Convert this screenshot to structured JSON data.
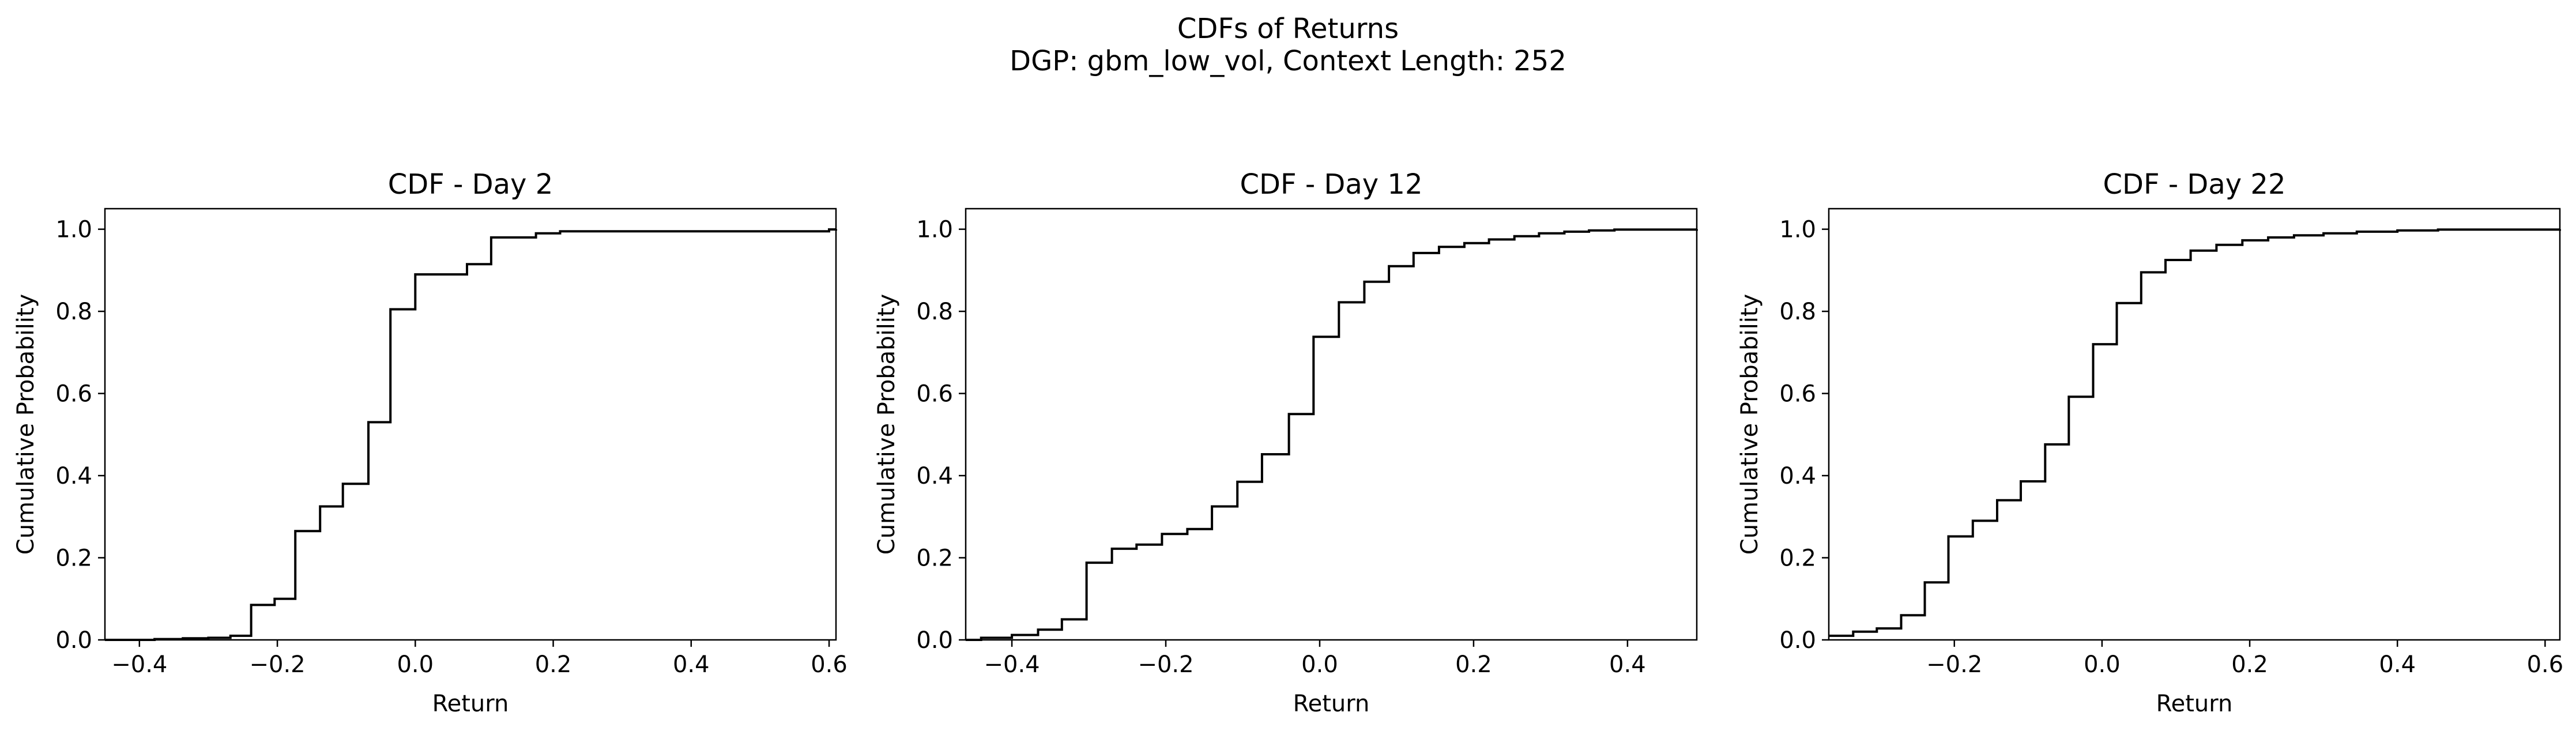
{
  "figure": {
    "title": "CDFs of Returns",
    "subtitle": "DGP: gbm_low_vol, Context Length: 252"
  },
  "chart_data": [
    {
      "type": "line",
      "step": true,
      "title": "CDF - Day 2",
      "xlabel": "Return",
      "ylabel": "Cumulative Probability",
      "xlim": [
        -0.45,
        0.61
      ],
      "ylim": [
        0.0,
        1.05
      ],
      "xticks": [
        -0.4,
        -0.2,
        0.0,
        0.2,
        0.4,
        0.6
      ],
      "xtick_labels": [
        "−0.4",
        "−0.2",
        "0.0",
        "0.2",
        "0.4",
        "0.6"
      ],
      "yticks": [
        0.0,
        0.2,
        0.4,
        0.6,
        0.8,
        1.0
      ],
      "ytick_labels": [
        "0.0",
        "0.2",
        "0.4",
        "0.6",
        "0.8",
        "1.0"
      ],
      "grid": false,
      "color": "#000000",
      "series": [
        {
          "x": [
            -0.45,
            -0.378,
            -0.337,
            -0.3,
            -0.268,
            -0.238,
            -0.204,
            -0.174,
            -0.138,
            -0.105,
            -0.068,
            -0.036,
            0.0,
            0.075,
            0.11,
            0.175,
            0.21,
            0.6,
            0.61
          ],
          "y": [
            0.0,
            0.002,
            0.004,
            0.005,
            0.01,
            0.085,
            0.1,
            0.265,
            0.325,
            0.38,
            0.53,
            0.805,
            0.89,
            0.915,
            0.98,
            0.99,
            0.995,
            0.9995,
            1.0
          ]
        }
      ]
    },
    {
      "type": "line",
      "step": true,
      "title": "CDF - Day 12",
      "xlabel": "Return",
      "ylabel": "Cumulative Probability",
      "xlim": [
        -0.46,
        0.49
      ],
      "ylim": [
        0.0,
        1.05
      ],
      "xticks": [
        -0.4,
        -0.2,
        0.0,
        0.2,
        0.4
      ],
      "xtick_labels": [
        "−0.4",
        "−0.2",
        "0.0",
        "0.2",
        "0.4"
      ],
      "yticks": [
        0.0,
        0.2,
        0.4,
        0.6,
        0.8,
        1.0
      ],
      "ytick_labels": [
        "0.0",
        "0.2",
        "0.4",
        "0.6",
        "0.8",
        "1.0"
      ],
      "grid": false,
      "color": "#000000",
      "series": [
        {
          "x": [
            -0.46,
            -0.44,
            -0.4,
            -0.366,
            -0.335,
            -0.303,
            -0.27,
            -0.238,
            -0.205,
            -0.172,
            -0.14,
            -0.107,
            -0.075,
            -0.04,
            -0.008,
            0.025,
            0.058,
            0.09,
            0.122,
            0.155,
            0.188,
            0.22,
            0.253,
            0.285,
            0.318,
            0.35,
            0.383,
            0.49
          ],
          "y": [
            0.0,
            0.005,
            0.012,
            0.025,
            0.05,
            0.188,
            0.222,
            0.232,
            0.258,
            0.27,
            0.325,
            0.385,
            0.452,
            0.55,
            0.738,
            0.822,
            0.872,
            0.91,
            0.942,
            0.957,
            0.966,
            0.975,
            0.983,
            0.99,
            0.994,
            0.997,
            0.999,
            1.0
          ]
        }
      ]
    },
    {
      "type": "line",
      "step": true,
      "title": "CDF - Day 22",
      "xlabel": "Return",
      "ylabel": "Cumulative Probability",
      "xlim": [
        -0.37,
        0.62
      ],
      "ylim": [
        0.0,
        1.05
      ],
      "xticks": [
        -0.2,
        0.0,
        0.2,
        0.4,
        0.6
      ],
      "xtick_labels": [
        "−0.2",
        "0.0",
        "0.2",
        "0.4",
        "0.6"
      ],
      "yticks": [
        0.0,
        0.2,
        0.4,
        0.6,
        0.8,
        1.0
      ],
      "ytick_labels": [
        "0.0",
        "0.2",
        "0.4",
        "0.6",
        "0.8",
        "1.0"
      ],
      "grid": false,
      "color": "#000000",
      "series": [
        {
          "x": [
            -0.37,
            -0.337,
            -0.305,
            -0.272,
            -0.24,
            -0.208,
            -0.175,
            -0.142,
            -0.11,
            -0.077,
            -0.045,
            -0.012,
            0.02,
            0.053,
            0.086,
            0.12,
            0.155,
            0.19,
            0.225,
            0.26,
            0.3,
            0.345,
            0.4,
            0.455,
            0.62
          ],
          "y": [
            0.01,
            0.02,
            0.028,
            0.06,
            0.14,
            0.252,
            0.29,
            0.34,
            0.386,
            0.476,
            0.592,
            0.72,
            0.82,
            0.895,
            0.925,
            0.948,
            0.962,
            0.973,
            0.98,
            0.985,
            0.99,
            0.994,
            0.997,
            0.999,
            1.0
          ]
        }
      ]
    }
  ]
}
